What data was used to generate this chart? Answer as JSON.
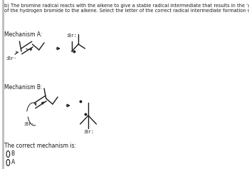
{
  "title_text": "b) The bromine radical reacts with the alkene to give a stable radical intermediate that results in the ‘anti-Markovnikov’ addition\nof the hydrogen bromide to the alkene. Select the letter of the correct radical intermediate formation step.",
  "mechanism_a_label": "Mechanism A:",
  "mechanism_b_label": "Mechanism B:",
  "correct_label": "The correct mechanism is:",
  "option_b": "B",
  "option_a": "A",
  "bg_color": "#ffffff",
  "line_color": "#1a1a1a",
  "text_color": "#1a1a1a",
  "font_size_title": 4.8,
  "font_size_label": 5.5,
  "font_size_br": 4.8,
  "font_size_option": 5.5
}
